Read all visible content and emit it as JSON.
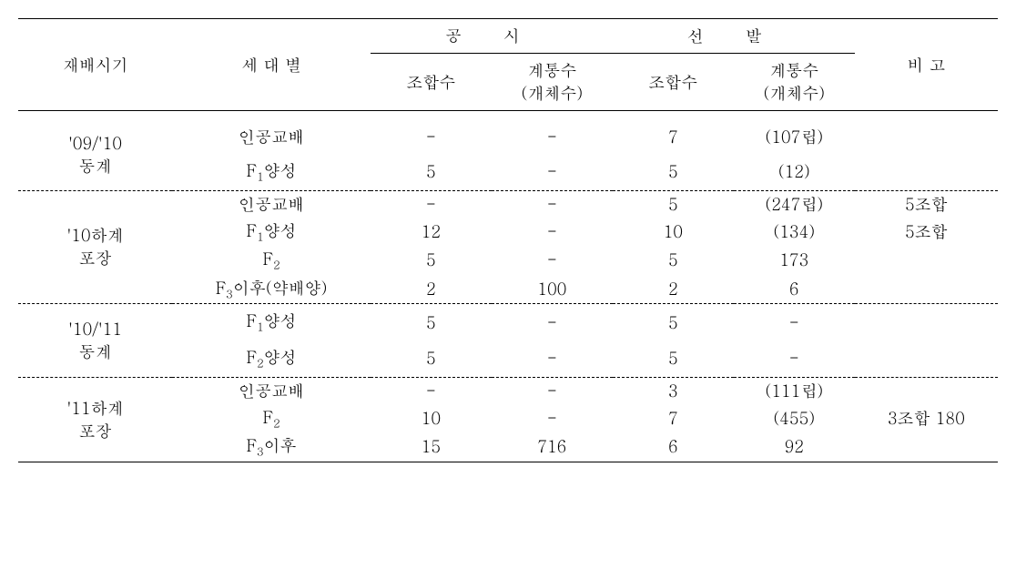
{
  "headers": {
    "col_period": "재배시기",
    "col_generation": "세 대 별",
    "group_gongsi": "공   시",
    "group_seonbal": "선   발",
    "col_johapsu": "조합수",
    "col_gyetongsu": "계통수\n(개체수)",
    "col_note": "비  고"
  },
  "sections": [
    {
      "period": "'09/'10\n동계",
      "rows": [
        {
          "gen": "인공교배",
          "gs_johap": "-",
          "gs_gyetong": "-",
          "sb_johap": "7",
          "sb_gyetong": "(107립)",
          "note": ""
        },
        {
          "gen": "F₁양성",
          "gs_johap": "5",
          "gs_gyetong": "-",
          "sb_johap": "5",
          "sb_gyetong": "(12)",
          "note": ""
        }
      ]
    },
    {
      "period": "'10하계\n포장",
      "rows": [
        {
          "gen": "인공교배",
          "gs_johap": "-",
          "gs_gyetong": "-",
          "sb_johap": "5",
          "sb_gyetong": "(247립)",
          "note": "5조합"
        },
        {
          "gen": "F₁양성",
          "gs_johap": "12",
          "gs_gyetong": "-",
          "sb_johap": "10",
          "sb_gyetong": "(134)",
          "note": "5조합"
        },
        {
          "gen": "F₂",
          "gs_johap": "5",
          "gs_gyetong": "-",
          "sb_johap": "5",
          "sb_gyetong": "173",
          "note": ""
        },
        {
          "gen": "F₃이후(약배양)",
          "gs_johap": "2",
          "gs_gyetong": "100",
          "sb_johap": "2",
          "sb_gyetong": "6",
          "note": ""
        }
      ]
    },
    {
      "period": "'10/'11\n동계",
      "rows": [
        {
          "gen": "F₁양성",
          "gs_johap": "5",
          "gs_gyetong": "-",
          "sb_johap": "5",
          "sb_gyetong": "-",
          "note": ""
        },
        {
          "gen": "F₂양성",
          "gs_johap": "5",
          "gs_gyetong": "-",
          "sb_johap": "5",
          "sb_gyetong": "-",
          "note": ""
        }
      ]
    },
    {
      "period": "'11하계\n포장",
      "rows": [
        {
          "gen": "인공교배",
          "gs_johap": "-",
          "gs_gyetong": "-",
          "sb_johap": "3",
          "sb_gyetong": "(111립)",
          "note": ""
        },
        {
          "gen": "F₂",
          "gs_johap": "10",
          "gs_gyetong": "-",
          "sb_johap": "7",
          "sb_gyetong": "(455)",
          "note": "3조합 180"
        },
        {
          "gen": "F₃이후",
          "gs_johap": "15",
          "gs_gyetong": "716",
          "sb_johap": "6",
          "sb_gyetong": "92",
          "note": ""
        }
      ]
    }
  ],
  "styling": {
    "font_family": "Batang, Malgun Gothic, serif",
    "font_size_pt": 14,
    "text_color": "#000000",
    "background_color": "#ffffff",
    "border_thick": "1.5px solid #000",
    "border_thin": "1px solid #000",
    "border_dotted": "1px dashed #000"
  }
}
